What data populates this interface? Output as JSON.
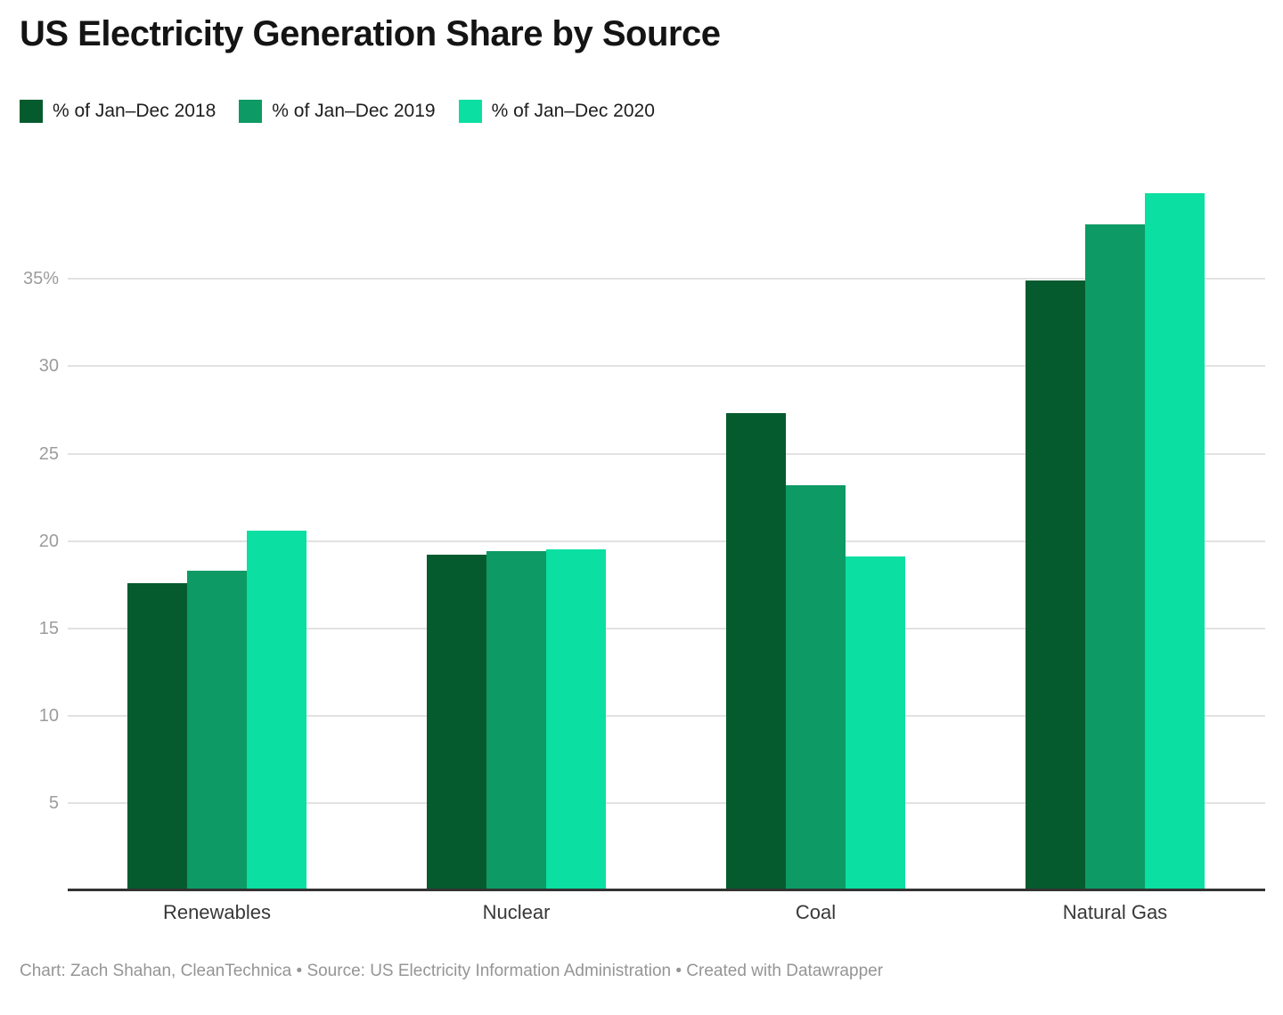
{
  "title": "US Electricity Generation Share by Source",
  "footer": "Chart: Zach Shahan, CleanTechnica • Source: US Electricity Information Administration • Created with Datawrapper",
  "colors": {
    "background": "#ffffff",
    "title_text": "#141414",
    "legend_text": "#1e1e1e",
    "gridline": "#e2e2e2",
    "baseline": "#333333",
    "ytick_text": "#9c9c9c",
    "category_text": "#383838",
    "footer_text": "#959595",
    "series_2018": "#065b2e",
    "series_2019": "#0d9a65",
    "series_2020": "#0bdfa2"
  },
  "chart_data": {
    "type": "bar",
    "title": "US Electricity Generation Share by Source",
    "xlabel": "",
    "ylabel": "",
    "grid": true,
    "legend_position": "top",
    "ylim": [
      0,
      41.6
    ],
    "yticks": [
      5,
      10,
      15,
      20,
      25,
      30,
      35
    ],
    "ytick_labels": [
      "5",
      "10",
      "15",
      "20",
      "25",
      "30",
      "35%"
    ],
    "categories": [
      "Renewables",
      "Nuclear",
      "Coal",
      "Natural Gas"
    ],
    "series": [
      {
        "key": "2018",
        "name": "% of Jan–Dec 2018",
        "color": "#065b2e",
        "values": [
          17.6,
          19.2,
          27.3,
          34.9
        ]
      },
      {
        "key": "2019",
        "name": "% of Jan–Dec 2019",
        "color": "#0d9a65",
        "values": [
          18.3,
          19.4,
          23.2,
          38.1
        ]
      },
      {
        "key": "2020",
        "name": "% of Jan–Dec 2020",
        "color": "#0bdfa2",
        "values": [
          20.6,
          19.5,
          19.1,
          39.9
        ]
      }
    ]
  }
}
